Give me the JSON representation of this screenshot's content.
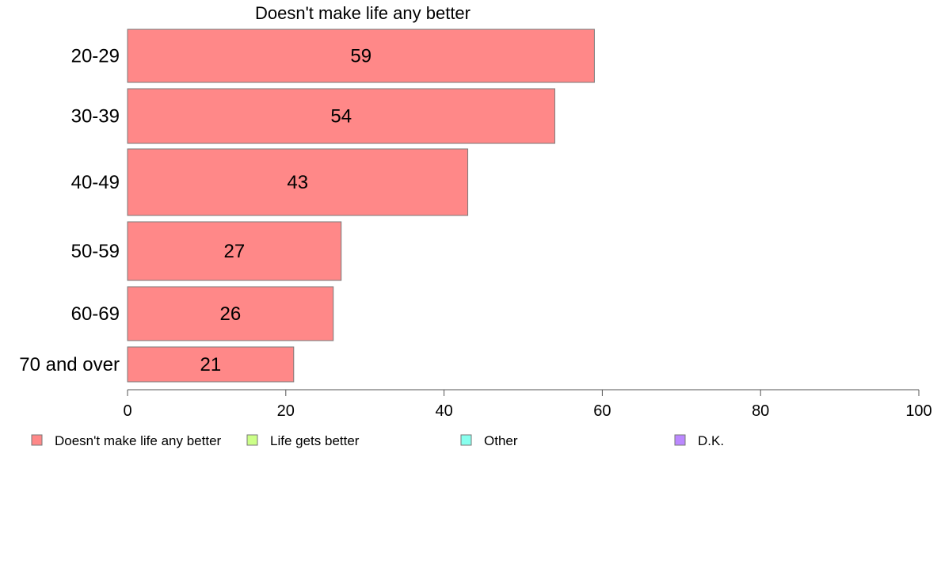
{
  "chart_data": {
    "type": "bar",
    "orientation": "horizontal",
    "title": "Doesn't make life any better",
    "categories": [
      "20-29",
      "30-39",
      "40-49",
      "50-59",
      "60-69",
      "70 and over"
    ],
    "series": [
      {
        "name": "Doesn't make life any better",
        "values": [
          59,
          54,
          43,
          27,
          26,
          21
        ],
        "color": "#ff8888"
      }
    ],
    "data_labels": [
      "59",
      "54",
      "43",
      "27",
      "26",
      "21"
    ],
    "xlim": [
      0,
      100
    ],
    "xticks": [
      0,
      20,
      40,
      60,
      80,
      100
    ],
    "xtick_labels": [
      "0",
      "20",
      "40",
      "60",
      "80",
      "100"
    ],
    "grid": false,
    "legend_position": "bottom",
    "legend": [
      {
        "label": "Doesn't make life any better",
        "color": "#ff8888"
      },
      {
        "label": "Life gets better",
        "color": "#ccff88"
      },
      {
        "label": "Other",
        "color": "#88ffee"
      },
      {
        "label": "D.K.",
        "color": "#bb88ff"
      }
    ]
  }
}
